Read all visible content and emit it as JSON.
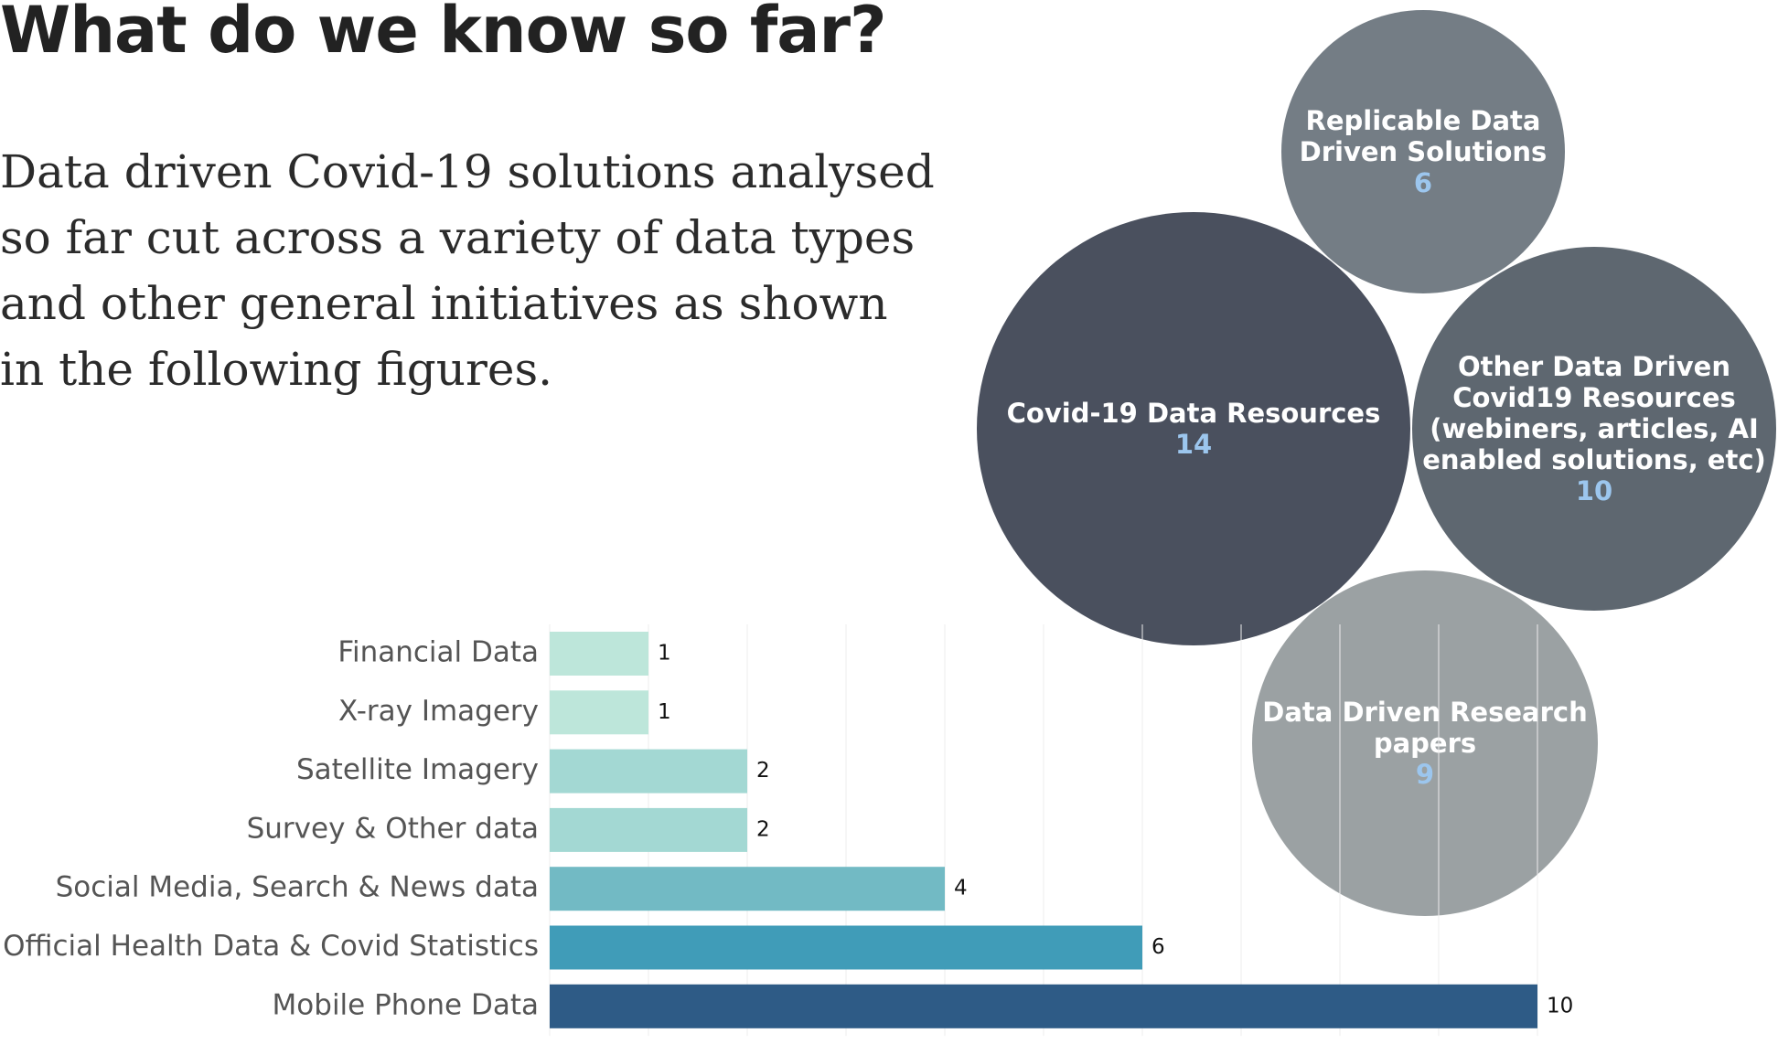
{
  "page": {
    "title": "What do we know so far?",
    "intro": "Data driven Covid-19 solutions analysed so far cut across a variety of data types and other general initiatives as shown in the following figures."
  },
  "chart_data": [
    {
      "type": "bubble",
      "items": [
        {
          "label_lines": [
            "Replicable Data",
            "Driven Solutions"
          ],
          "value": 6,
          "color": "#747d85"
        },
        {
          "label_lines": [
            "Covid-19 Data Resources"
          ],
          "value": 14,
          "color": "#4a505e"
        },
        {
          "label_lines": [
            "Other Data Driven",
            "Covid19 Resources",
            "(webiners, articles, AI",
            "enabled solutions, etc)"
          ],
          "value": 10,
          "color": "#5e6770"
        },
        {
          "label_lines": [
            "Data Driven Research",
            "papers"
          ],
          "value": 9,
          "color": "#9ba1a3"
        }
      ],
      "value_color": "#9cc6ee"
    },
    {
      "type": "bar",
      "orientation": "horizontal",
      "categories": [
        "Financial Data",
        "X-ray Imagery",
        "Satellite Imagery",
        "Survey & Other data",
        "Social Media, Search & News data",
        "Official Health Data & Covid Statistics",
        "Mobile Phone Data"
      ],
      "values": [
        1,
        1,
        2,
        2,
        4,
        6,
        10
      ],
      "colors": [
        "#bde6da",
        "#bde6da",
        "#a3d8d3",
        "#a3d8d3",
        "#72bac4",
        "#409cb8",
        "#2e5b86"
      ],
      "xlim": [
        0,
        10
      ],
      "grid": true
    }
  ]
}
